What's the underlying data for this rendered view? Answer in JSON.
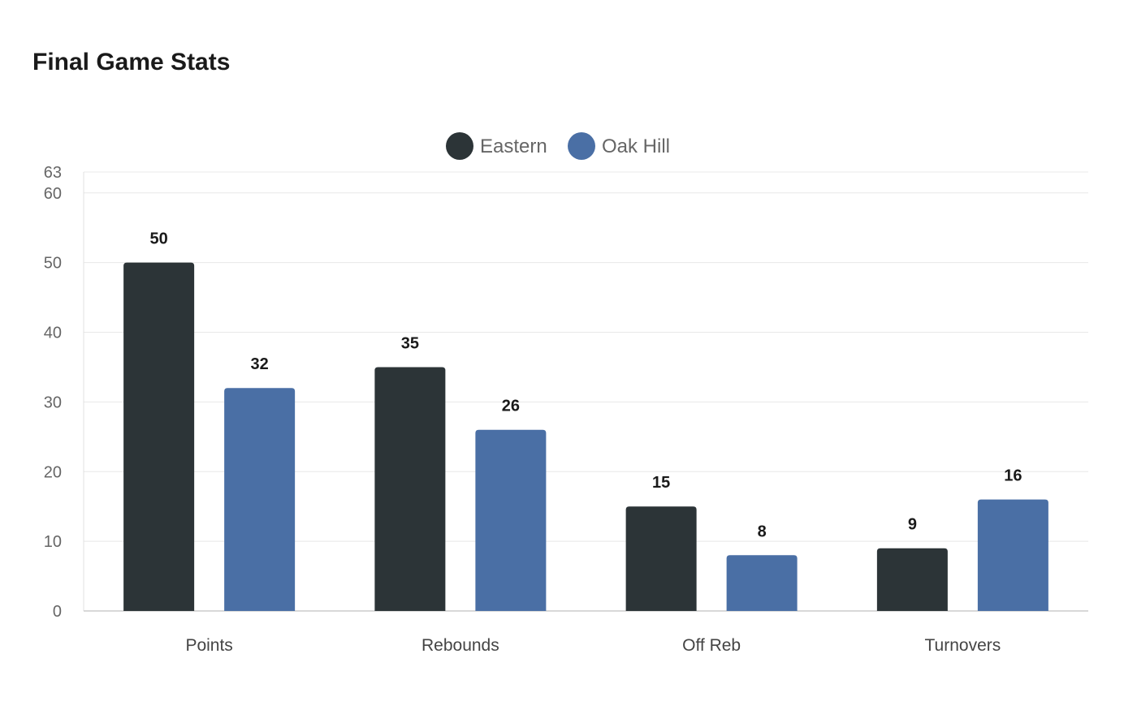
{
  "chart_data": {
    "type": "bar",
    "title": "Final Game Stats",
    "categories": [
      "Points",
      "Rebounds",
      "Off Reb",
      "Turnovers"
    ],
    "series": [
      {
        "name": "Eastern",
        "color": "#2c3437",
        "values": [
          50,
          35,
          15,
          9
        ]
      },
      {
        "name": "Oak Hill",
        "color": "#4a6fa5",
        "values": [
          32,
          26,
          8,
          16
        ]
      }
    ],
    "yticks": [
      0,
      10,
      20,
      30,
      40,
      50,
      60,
      63
    ],
    "ylim": [
      0,
      63
    ],
    "xlabel": "",
    "ylabel": "",
    "grid": true,
    "legend": "top-center"
  }
}
